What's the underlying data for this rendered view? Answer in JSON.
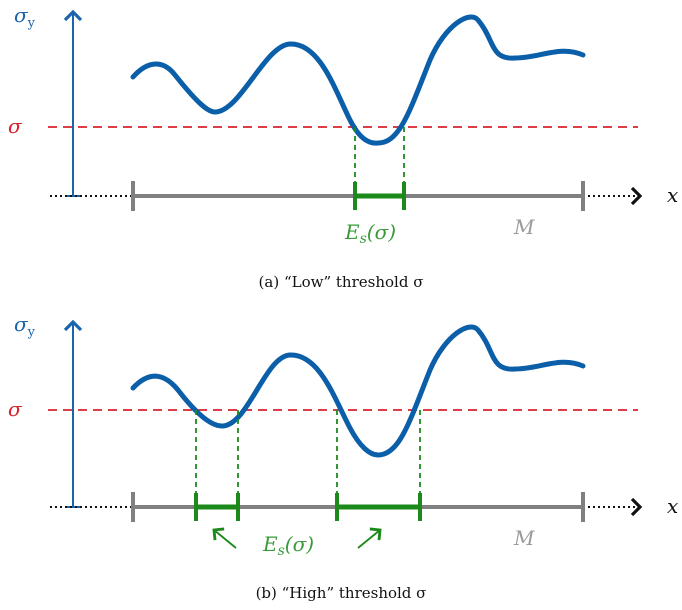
{
  "colors": {
    "axis_blue": "#1a64ac",
    "curve_blue": "#0b5ea8",
    "threshold_red": "#d7222c",
    "set_green": "#1b8a1b",
    "domain_gray": "#808080",
    "label_green": "#3a9b3a",
    "label_gray": "#9a9a9a"
  },
  "panels": [
    {
      "y_axis_label_main": "σ",
      "y_axis_label_sub": "y",
      "threshold_label": "σ",
      "x_axis_label": "x",
      "domain_label": "M",
      "set_label_main": "E",
      "set_label_sub": "s",
      "set_label_arg": "(σ)",
      "caption": "(a) “Low” threshold σ"
    },
    {
      "y_axis_label_main": "σ",
      "y_axis_label_sub": "y",
      "threshold_label": "σ",
      "x_axis_label": "x",
      "domain_label": "M",
      "set_label_main": "E",
      "set_label_sub": "s",
      "set_label_arg": "(σ)",
      "caption": "(b) “High” threshold σ"
    }
  ]
}
